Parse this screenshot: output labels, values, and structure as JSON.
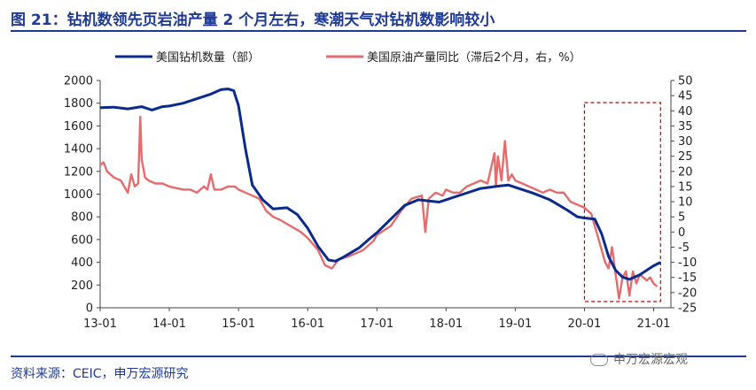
{
  "header": {
    "title": "图 21：钻机数领先页岩油产量 2 个月左右，寒潮天气对钻机数影响较小"
  },
  "footer": {
    "source": "资料来源：CEIC，申万宏源研究",
    "watermark": "申万宏源宏观"
  },
  "chart_data": {
    "type": "line",
    "x_tick_labels": [
      "13-01",
      "14-01",
      "15-01",
      "16-01",
      "17-01",
      "18-01",
      "19-01",
      "20-01",
      "21-01"
    ],
    "x_range": [
      2013.0,
      2021.25
    ],
    "left_axis": {
      "ticks": [
        "2000",
        "1800",
        "1600",
        "1400",
        "1200",
        "1000",
        "800",
        "600",
        "400",
        "200",
        "0"
      ],
      "ylim": [
        0,
        2000
      ]
    },
    "right_axis": {
      "ticks": [
        "50",
        "45",
        "40",
        "35",
        "30",
        "25",
        "20",
        "15",
        "10",
        "5",
        "0",
        "-5",
        "-10",
        "-15",
        "-20",
        "-25"
      ],
      "ylim": [
        -25,
        50
      ]
    },
    "legend_position": "top",
    "highlight_box": {
      "x_range": [
        2020.0,
        2021.1
      ],
      "style": "dashed",
      "color": "#c00000"
    },
    "series": [
      {
        "name": "美国钻机数量（部）",
        "axis": "left",
        "color": "#0a2a8c",
        "points": [
          [
            2013.0,
            1760
          ],
          [
            2013.2,
            1765
          ],
          [
            2013.4,
            1750
          ],
          [
            2013.6,
            1770
          ],
          [
            2013.75,
            1740
          ],
          [
            2013.9,
            1770
          ],
          [
            2014.0,
            1775
          ],
          [
            2014.2,
            1800
          ],
          [
            2014.4,
            1840
          ],
          [
            2014.6,
            1880
          ],
          [
            2014.75,
            1920
          ],
          [
            2014.85,
            1925
          ],
          [
            2014.93,
            1910
          ],
          [
            2015.0,
            1780
          ],
          [
            2015.1,
            1400
          ],
          [
            2015.2,
            1080
          ],
          [
            2015.35,
            950
          ],
          [
            2015.5,
            870
          ],
          [
            2015.7,
            880
          ],
          [
            2015.85,
            820
          ],
          [
            2016.0,
            700
          ],
          [
            2016.15,
            540
          ],
          [
            2016.3,
            420
          ],
          [
            2016.4,
            410
          ],
          [
            2016.5,
            440
          ],
          [
            2016.75,
            530
          ],
          [
            2016.9,
            610
          ],
          [
            2017.0,
            660
          ],
          [
            2017.2,
            780
          ],
          [
            2017.4,
            900
          ],
          [
            2017.6,
            950
          ],
          [
            2017.75,
            940
          ],
          [
            2017.9,
            930
          ],
          [
            2018.0,
            950
          ],
          [
            2018.25,
            1000
          ],
          [
            2018.5,
            1050
          ],
          [
            2018.75,
            1070
          ],
          [
            2018.9,
            1080
          ],
          [
            2019.0,
            1060
          ],
          [
            2019.25,
            1010
          ],
          [
            2019.5,
            950
          ],
          [
            2019.75,
            860
          ],
          [
            2019.9,
            800
          ],
          [
            2020.0,
            790
          ],
          [
            2020.15,
            780
          ],
          [
            2020.25,
            650
          ],
          [
            2020.35,
            450
          ],
          [
            2020.45,
            330
          ],
          [
            2020.55,
            270
          ],
          [
            2020.65,
            250
          ],
          [
            2020.8,
            290
          ],
          [
            2020.95,
            350
          ],
          [
            2021.0,
            370
          ],
          [
            2021.1,
            400
          ]
        ]
      },
      {
        "name": "美国原油产量同比（滞后2个月，右，%）",
        "axis": "right",
        "color": "#e46c6c",
        "points": [
          [
            2013.0,
            22
          ],
          [
            2013.05,
            23
          ],
          [
            2013.1,
            20
          ],
          [
            2013.2,
            18
          ],
          [
            2013.3,
            17
          ],
          [
            2013.4,
            13
          ],
          [
            2013.45,
            19
          ],
          [
            2013.5,
            15
          ],
          [
            2013.55,
            16
          ],
          [
            2013.58,
            38
          ],
          [
            2013.6,
            24
          ],
          [
            2013.65,
            18
          ],
          [
            2013.7,
            17
          ],
          [
            2013.8,
            16
          ],
          [
            2013.9,
            16
          ],
          [
            2014.0,
            15
          ],
          [
            2014.2,
            14
          ],
          [
            2014.3,
            14
          ],
          [
            2014.4,
            13
          ],
          [
            2014.5,
            15
          ],
          [
            2014.55,
            14
          ],
          [
            2014.6,
            19
          ],
          [
            2014.65,
            14
          ],
          [
            2014.75,
            14
          ],
          [
            2014.85,
            15
          ],
          [
            2014.95,
            15
          ],
          [
            2015.0,
            14
          ],
          [
            2015.1,
            13
          ],
          [
            2015.2,
            12
          ],
          [
            2015.3,
            11
          ],
          [
            2015.4,
            7
          ],
          [
            2015.5,
            5
          ],
          [
            2015.6,
            4
          ],
          [
            2015.75,
            2
          ],
          [
            2015.9,
            0
          ],
          [
            2016.0,
            -2
          ],
          [
            2016.15,
            -6
          ],
          [
            2016.25,
            -11
          ],
          [
            2016.35,
            -12
          ],
          [
            2016.45,
            -9
          ],
          [
            2016.6,
            -8
          ],
          [
            2016.8,
            -6
          ],
          [
            2016.95,
            -3
          ],
          [
            2017.0,
            -1
          ],
          [
            2017.2,
            2
          ],
          [
            2017.35,
            7
          ],
          [
            2017.5,
            11
          ],
          [
            2017.65,
            12
          ],
          [
            2017.7,
            0
          ],
          [
            2017.75,
            11
          ],
          [
            2017.85,
            13
          ],
          [
            2017.95,
            12
          ],
          [
            2018.0,
            14
          ],
          [
            2018.1,
            13
          ],
          [
            2018.2,
            13
          ],
          [
            2018.3,
            15
          ],
          [
            2018.4,
            16
          ],
          [
            2018.5,
            17
          ],
          [
            2018.6,
            16
          ],
          [
            2018.7,
            26
          ],
          [
            2018.72,
            15
          ],
          [
            2018.75,
            25
          ],
          [
            2018.8,
            17
          ],
          [
            2018.85,
            30
          ],
          [
            2018.9,
            17
          ],
          [
            2018.95,
            19
          ],
          [
            2019.0,
            17
          ],
          [
            2019.1,
            16
          ],
          [
            2019.2,
            15
          ],
          [
            2019.3,
            14
          ],
          [
            2019.4,
            13
          ],
          [
            2019.5,
            14
          ],
          [
            2019.6,
            13
          ],
          [
            2019.7,
            13
          ],
          [
            2019.8,
            10
          ],
          [
            2019.9,
            9
          ],
          [
            2020.0,
            8
          ],
          [
            2020.05,
            7
          ],
          [
            2020.1,
            6
          ],
          [
            2020.2,
            -2
          ],
          [
            2020.3,
            -10
          ],
          [
            2020.35,
            -12
          ],
          [
            2020.4,
            -5
          ],
          [
            2020.45,
            -14
          ],
          [
            2020.5,
            -22
          ],
          [
            2020.55,
            -15
          ],
          [
            2020.6,
            -13
          ],
          [
            2020.65,
            -21
          ],
          [
            2020.7,
            -13
          ],
          [
            2020.75,
            -17
          ],
          [
            2020.8,
            -14
          ],
          [
            2020.9,
            -16
          ],
          [
            2020.95,
            -15
          ],
          [
            2021.0,
            -17
          ],
          [
            2021.05,
            -18
          ]
        ]
      }
    ]
  }
}
